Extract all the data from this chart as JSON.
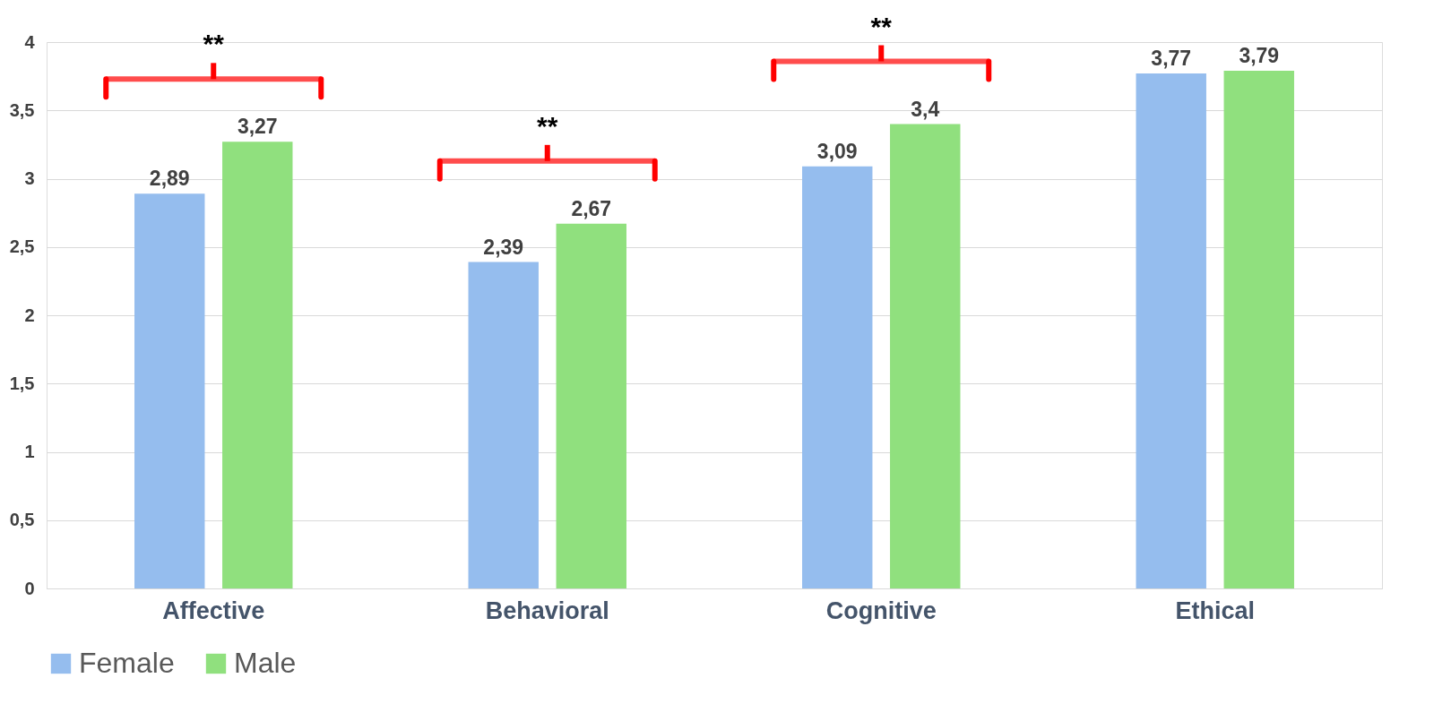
{
  "chart_data": {
    "type": "bar",
    "categories": [
      "Affective",
      "Behavioral",
      "Cognitive",
      "Ethical"
    ],
    "series": [
      {
        "name": "Female",
        "color": "#95bdee",
        "values": [
          2.89,
          2.39,
          3.09,
          3.77
        ],
        "value_labels": [
          "2,89",
          "2,39",
          "3,09",
          "3,77"
        ]
      },
      {
        "name": "Male",
        "color": "#90e07e",
        "values": [
          3.27,
          2.67,
          3.4,
          3.79
        ],
        "value_labels": [
          "3,27",
          "2,67",
          "3,4",
          "3,79"
        ]
      }
    ],
    "ylim": [
      0,
      4
    ],
    "yticks": [
      0,
      {
        "value": 0.5,
        "label": "0,5"
      },
      1,
      {
        "value": 1.5,
        "label": "1,5"
      },
      2,
      {
        "value": 2.5,
        "label": "2,5"
      },
      3,
      {
        "value": 3.5,
        "label": "3,5"
      },
      4
    ],
    "grid": "y",
    "legend": "bottom",
    "annotations": [
      "**",
      "**",
      "**"
    ]
  }
}
